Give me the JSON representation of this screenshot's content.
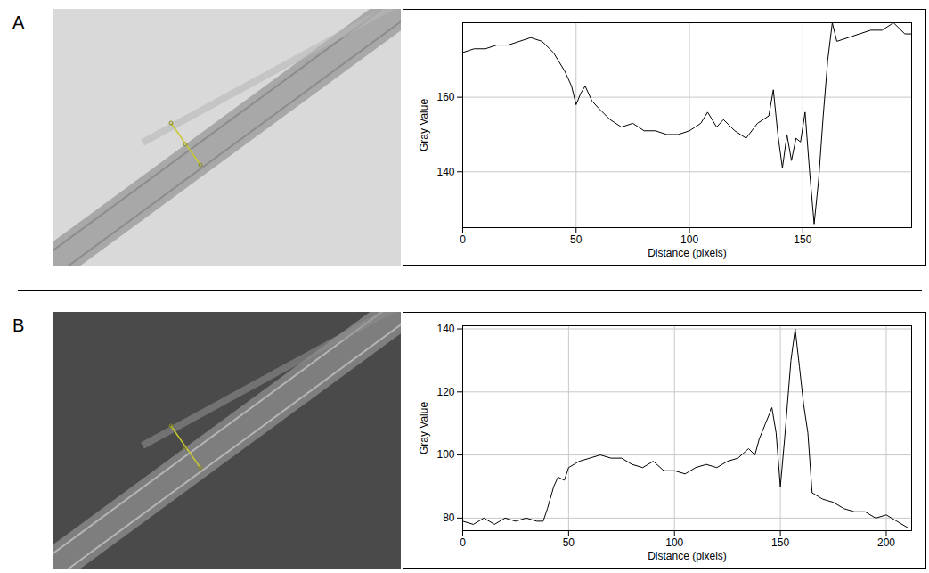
{
  "chart_data": [
    {
      "type": "line",
      "panel": "A",
      "xlabel": "Distance (pixels)",
      "ylabel": "Gray Value",
      "xlim": [
        0,
        198
      ],
      "ylim": [
        125,
        180
      ],
      "xticks": [
        0,
        50,
        100,
        150
      ],
      "yticks": [
        140,
        160
      ],
      "grid": true,
      "color": "#000000",
      "x": [
        0,
        5,
        10,
        15,
        20,
        25,
        30,
        35,
        40,
        45,
        48,
        50,
        52,
        54,
        57,
        60,
        65,
        70,
        75,
        80,
        85,
        90,
        95,
        100,
        105,
        108,
        112,
        115,
        120,
        125,
        130,
        135,
        137,
        139,
        141,
        143,
        145,
        147,
        149,
        151,
        153,
        155,
        157,
        159,
        161,
        163,
        165,
        170,
        175,
        180,
        185,
        190,
        195,
        198
      ],
      "values": [
        172,
        173,
        173,
        174,
        174,
        175,
        176,
        175,
        172,
        167,
        163,
        158,
        161,
        163,
        159,
        157,
        154,
        152,
        153,
        151,
        151,
        150,
        150,
        151,
        153,
        156,
        152,
        154,
        151,
        149,
        153,
        155,
        162,
        150,
        141,
        150,
        143,
        149,
        148,
        156,
        140,
        126,
        138,
        155,
        170,
        180,
        175,
        176,
        177,
        178,
        178,
        180,
        177,
        177
      ]
    },
    {
      "type": "line",
      "panel": "B",
      "xlabel": "Distance (pixels)",
      "ylabel": "Gray Value",
      "xlim": [
        0,
        212
      ],
      "ylim": [
        76,
        141
      ],
      "xticks": [
        0,
        50,
        100,
        150,
        200
      ],
      "yticks": [
        80,
        100,
        120,
        140
      ],
      "grid": true,
      "color": "#000000",
      "x": [
        0,
        5,
        10,
        15,
        20,
        25,
        30,
        35,
        38,
        40,
        43,
        45,
        48,
        50,
        55,
        60,
        65,
        70,
        75,
        80,
        85,
        90,
        95,
        100,
        105,
        110,
        115,
        120,
        125,
        130,
        135,
        138,
        140,
        143,
        146,
        148,
        150,
        152,
        155,
        157,
        159,
        161,
        163,
        165,
        170,
        175,
        180,
        185,
        190,
        195,
        200,
        205,
        210
      ],
      "values": [
        79,
        78,
        80,
        78,
        80,
        79,
        80,
        79,
        79,
        83,
        90,
        93,
        92,
        96,
        98,
        99,
        100,
        99,
        99,
        97,
        96,
        98,
        95,
        95,
        94,
        96,
        97,
        96,
        98,
        99,
        102,
        100,
        105,
        110,
        115,
        107,
        90,
        105,
        130,
        140,
        128,
        116,
        107,
        88,
        86,
        85,
        83,
        82,
        82,
        80,
        81,
        79,
        77
      ]
    }
  ]
}
